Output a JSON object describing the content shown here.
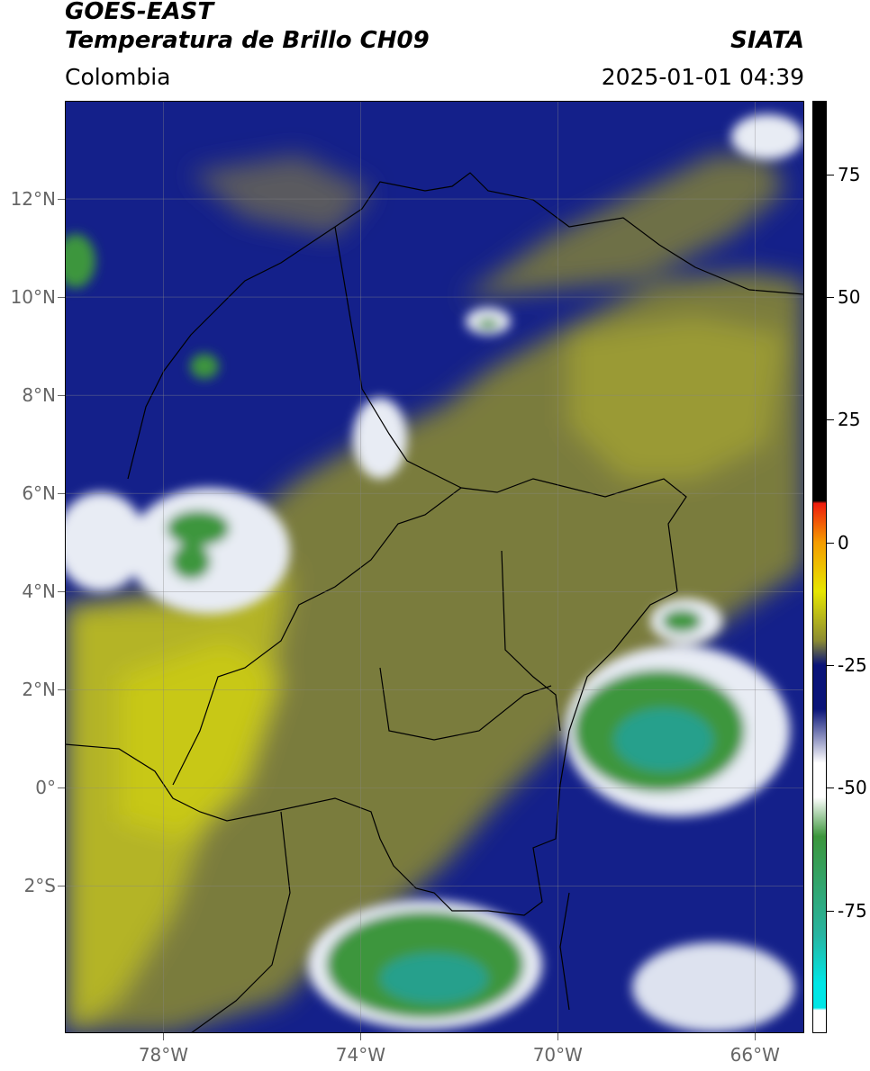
{
  "header": {
    "satellite": "GOES-EAST",
    "product": "Temperatura de Brillo CH09",
    "region": "Colombia",
    "org": "SIATA",
    "datetime": "2025-01-01 04:39"
  },
  "map": {
    "lon_range": [
      -80.0,
      -65.0
    ],
    "lat_range": [
      -5.0,
      14.0
    ],
    "lat_ticks": [
      {
        "value": 12,
        "label": "12°N"
      },
      {
        "value": 10,
        "label": "10°N"
      },
      {
        "value": 8,
        "label": "8°N"
      },
      {
        "value": 6,
        "label": "6°N"
      },
      {
        "value": 4,
        "label": "4°N"
      },
      {
        "value": 2,
        "label": "2°N"
      },
      {
        "value": 0,
        "label": "0°"
      },
      {
        "value": -2,
        "label": "2°S"
      }
    ],
    "lon_ticks": [
      {
        "value": -78,
        "label": "78°W"
      },
      {
        "value": -74,
        "label": "74°W"
      },
      {
        "value": -70,
        "label": "70°W"
      },
      {
        "value": -66,
        "label": "66°W"
      }
    ],
    "gridlines": true
  },
  "colorbar": {
    "range": [
      -100,
      90
    ],
    "ticks": [
      {
        "value": 75,
        "label": "75"
      },
      {
        "value": 50,
        "label": "50"
      },
      {
        "value": 25,
        "label": "25"
      },
      {
        "value": 0,
        "label": "0"
      },
      {
        "value": -25,
        "label": "-25"
      },
      {
        "value": -50,
        "label": "-50"
      },
      {
        "value": -75,
        "label": "-75"
      }
    ],
    "colors": {
      "black": "#000000",
      "red": "#ee1c0e",
      "orange": "#f59c00",
      "yellow": "#e6e600",
      "olive": "#8c8c32",
      "navy": "#0a1478",
      "white": "#ffffff",
      "green": "#3c963c",
      "teal": "#28b4a0",
      "cyan": "#00e6e6"
    }
  }
}
